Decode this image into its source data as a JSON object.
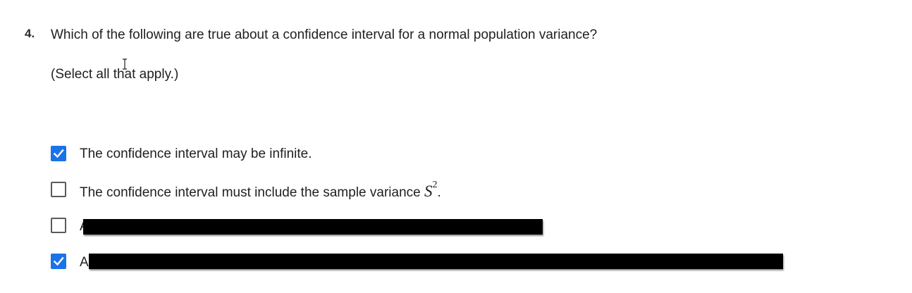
{
  "question": {
    "number": "4.",
    "prompt": "Which of the following are true about a confidence interval for a normal population variance?",
    "instruction": "(Select all that apply.)"
  },
  "options": [
    {
      "checked": true,
      "label": "The confidence interval may be infinite."
    },
    {
      "checked": false,
      "label_text": "The confidence interval must include the sample variance ",
      "label_math": "S",
      "label_math_sup": "2",
      "label_end": "."
    },
    {
      "checked": false,
      "visible_start": "A"
    },
    {
      "checked": true,
      "visible_start": "A"
    }
  ],
  "colors": {
    "checkbox_checked": "#1a73e8",
    "checkbox_border": "#5a5a5a",
    "redaction": "#000000"
  },
  "icons": {
    "check": "check-icon",
    "cursor": "text-cursor-icon"
  }
}
